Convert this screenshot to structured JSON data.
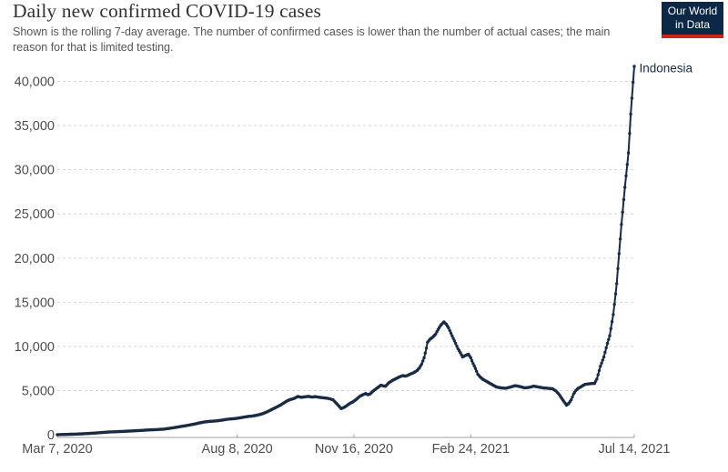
{
  "header": {
    "title": "Daily new confirmed COVID-19 cases",
    "subtitle": "Shown is the rolling 7-day average. The number of confirmed cases is lower than the number of actual cases; the main reason for that is limited testing."
  },
  "logo": {
    "line1": "Our World",
    "line2": "in Data",
    "bg_color": "#0d2847",
    "stripe_color": "#c7281e",
    "text_color": "#ffffff"
  },
  "chart_data": {
    "type": "line",
    "title": "Daily new confirmed COVID-19 cases",
    "x_axis": {
      "tick_days": [
        0,
        154,
        254,
        354,
        494
      ],
      "tick_labels": [
        "Mar 7, 2020",
        "Aug 8, 2020",
        "Nov 16, 2020",
        "Feb 24, 2021",
        "Jul 14, 2021"
      ],
      "start_date": "Mar 7, 2020",
      "end_date": "Jul 14, 2021",
      "max_day": 494
    },
    "y_axis": {
      "ticks": [
        0,
        5000,
        10000,
        15000,
        20000,
        25000,
        30000,
        35000,
        40000
      ],
      "tick_labels": [
        "0",
        "5,000",
        "10,000",
        "15,000",
        "20,000",
        "25,000",
        "30,000",
        "35,000",
        "40,000"
      ],
      "ylim": [
        0,
        42000
      ],
      "grid": "dashed-horizontal"
    },
    "legend_position": "label-at-line-end",
    "colors": {
      "series": "#1a2b45",
      "grid": "#d5d5d5",
      "axis": "#a0a0a0",
      "tick_label": "#4e4e4e"
    },
    "series": [
      {
        "name": "Indonesia",
        "color": "#1a2b45",
        "last_value": 41700,
        "peak_value": 12780,
        "points_day_value": [
          [
            0,
            5
          ],
          [
            7,
            30
          ],
          [
            14,
            60
          ],
          [
            21,
            100
          ],
          [
            29,
            160
          ],
          [
            36,
            230
          ],
          [
            43,
            300
          ],
          [
            50,
            340
          ],
          [
            57,
            380
          ],
          [
            64,
            430
          ],
          [
            71,
            480
          ],
          [
            78,
            540
          ],
          [
            85,
            580
          ],
          [
            91,
            630
          ],
          [
            98,
            760
          ],
          [
            104,
            890
          ],
          [
            109,
            1000
          ],
          [
            114,
            1120
          ],
          [
            119,
            1250
          ],
          [
            122,
            1350
          ],
          [
            127,
            1460
          ],
          [
            131,
            1520
          ],
          [
            136,
            1560
          ],
          [
            141,
            1650
          ],
          [
            146,
            1760
          ],
          [
            150,
            1800
          ],
          [
            154,
            1860
          ],
          [
            158,
            1950
          ],
          [
            163,
            2060
          ],
          [
            167,
            2120
          ],
          [
            171,
            2210
          ],
          [
            175,
            2350
          ],
          [
            179,
            2550
          ],
          [
            184,
            2880
          ],
          [
            188,
            3150
          ],
          [
            191,
            3350
          ],
          [
            194,
            3600
          ],
          [
            197,
            3850
          ],
          [
            200,
            4000
          ],
          [
            203,
            4120
          ],
          [
            206,
            4330
          ],
          [
            209,
            4230
          ],
          [
            212,
            4290
          ],
          [
            215,
            4340
          ],
          [
            218,
            4260
          ],
          [
            221,
            4310
          ],
          [
            224,
            4240
          ],
          [
            227,
            4190
          ],
          [
            230,
            4150
          ],
          [
            233,
            4080
          ],
          [
            236,
            3950
          ],
          [
            239,
            3550
          ],
          [
            241,
            3250
          ],
          [
            243,
            2950
          ],
          [
            245,
            3060
          ],
          [
            247,
            3210
          ],
          [
            250,
            3500
          ],
          [
            253,
            3710
          ],
          [
            256,
            4000
          ],
          [
            259,
            4350
          ],
          [
            262,
            4550
          ],
          [
            264,
            4660
          ],
          [
            266,
            4530
          ],
          [
            268,
            4630
          ],
          [
            270,
            4900
          ],
          [
            272,
            5110
          ],
          [
            274,
            5300
          ],
          [
            277,
            5600
          ],
          [
            279,
            5530
          ],
          [
            281,
            5490
          ],
          [
            284,
            5900
          ],
          [
            287,
            6150
          ],
          [
            290,
            6350
          ],
          [
            293,
            6550
          ],
          [
            296,
            6700
          ],
          [
            298,
            6630
          ],
          [
            300,
            6710
          ],
          [
            302,
            6860
          ],
          [
            305,
            7010
          ],
          [
            308,
            7260
          ],
          [
            310,
            7560
          ],
          [
            312,
            8000
          ],
          [
            314,
            8700
          ],
          [
            316,
            9800
          ],
          [
            317,
            10450
          ],
          [
            319,
            10800
          ],
          [
            321,
            11000
          ],
          [
            323,
            11250
          ],
          [
            324,
            11400
          ],
          [
            326,
            11900
          ],
          [
            328,
            12350
          ],
          [
            331,
            12780
          ],
          [
            333,
            12500
          ],
          [
            335,
            12100
          ],
          [
            337,
            11500
          ],
          [
            339,
            10900
          ],
          [
            341,
            10350
          ],
          [
            343,
            9750
          ],
          [
            345,
            9300
          ],
          [
            347,
            8800
          ],
          [
            349,
            8950
          ],
          [
            352,
            9110
          ],
          [
            354,
            8700
          ],
          [
            356,
            8050
          ],
          [
            358,
            7500
          ],
          [
            360,
            6860
          ],
          [
            362,
            6550
          ],
          [
            364,
            6300
          ],
          [
            366,
            6150
          ],
          [
            368,
            6000
          ],
          [
            370,
            5850
          ],
          [
            372,
            5700
          ],
          [
            374,
            5550
          ],
          [
            376,
            5400
          ],
          [
            380,
            5300
          ],
          [
            384,
            5260
          ],
          [
            388,
            5400
          ],
          [
            392,
            5550
          ],
          [
            396,
            5460
          ],
          [
            400,
            5300
          ],
          [
            404,
            5360
          ],
          [
            408,
            5500
          ],
          [
            412,
            5400
          ],
          [
            416,
            5300
          ],
          [
            420,
            5260
          ],
          [
            424,
            5200
          ],
          [
            427,
            4950
          ],
          [
            430,
            4500
          ],
          [
            433,
            3900
          ],
          [
            436,
            3350
          ],
          [
            438,
            3550
          ],
          [
            440,
            3950
          ],
          [
            442,
            4600
          ],
          [
            444,
            5000
          ],
          [
            446,
            5250
          ],
          [
            448,
            5400
          ],
          [
            450,
            5560
          ],
          [
            452,
            5700
          ],
          [
            455,
            5760
          ],
          [
            458,
            5800
          ],
          [
            460,
            5810
          ],
          [
            462,
            6300
          ],
          [
            465,
            7750
          ],
          [
            468,
            8800
          ],
          [
            471,
            10350
          ],
          [
            473,
            11200
          ],
          [
            476,
            13600
          ],
          [
            479,
            17100
          ],
          [
            481,
            20500
          ],
          [
            483,
            23800
          ],
          [
            486,
            28000
          ],
          [
            489,
            31900
          ],
          [
            491,
            36300
          ],
          [
            494,
            41700
          ]
        ]
      }
    ]
  }
}
